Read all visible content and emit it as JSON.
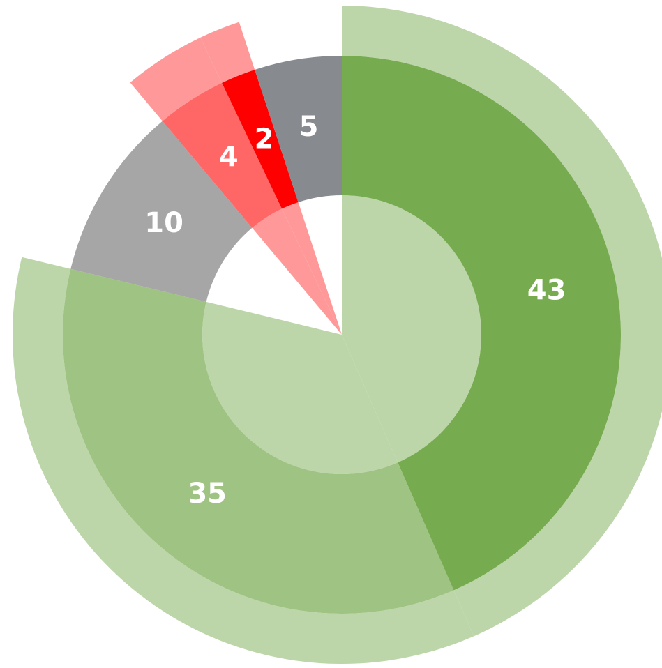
{
  "chart_data": {
    "type": "pie",
    "values": [
      43,
      35,
      10,
      4,
      2,
      5
    ],
    "colors": [
      "#77ab50",
      "#9fc383",
      "#a6a6a6",
      "#ff6666",
      "#ff0000",
      "#878a8e"
    ],
    "ring_colors": [
      "#bcd6a9",
      "#bcd6a9",
      null,
      "#ff9999",
      "#ff9999",
      null
    ]
  }
}
